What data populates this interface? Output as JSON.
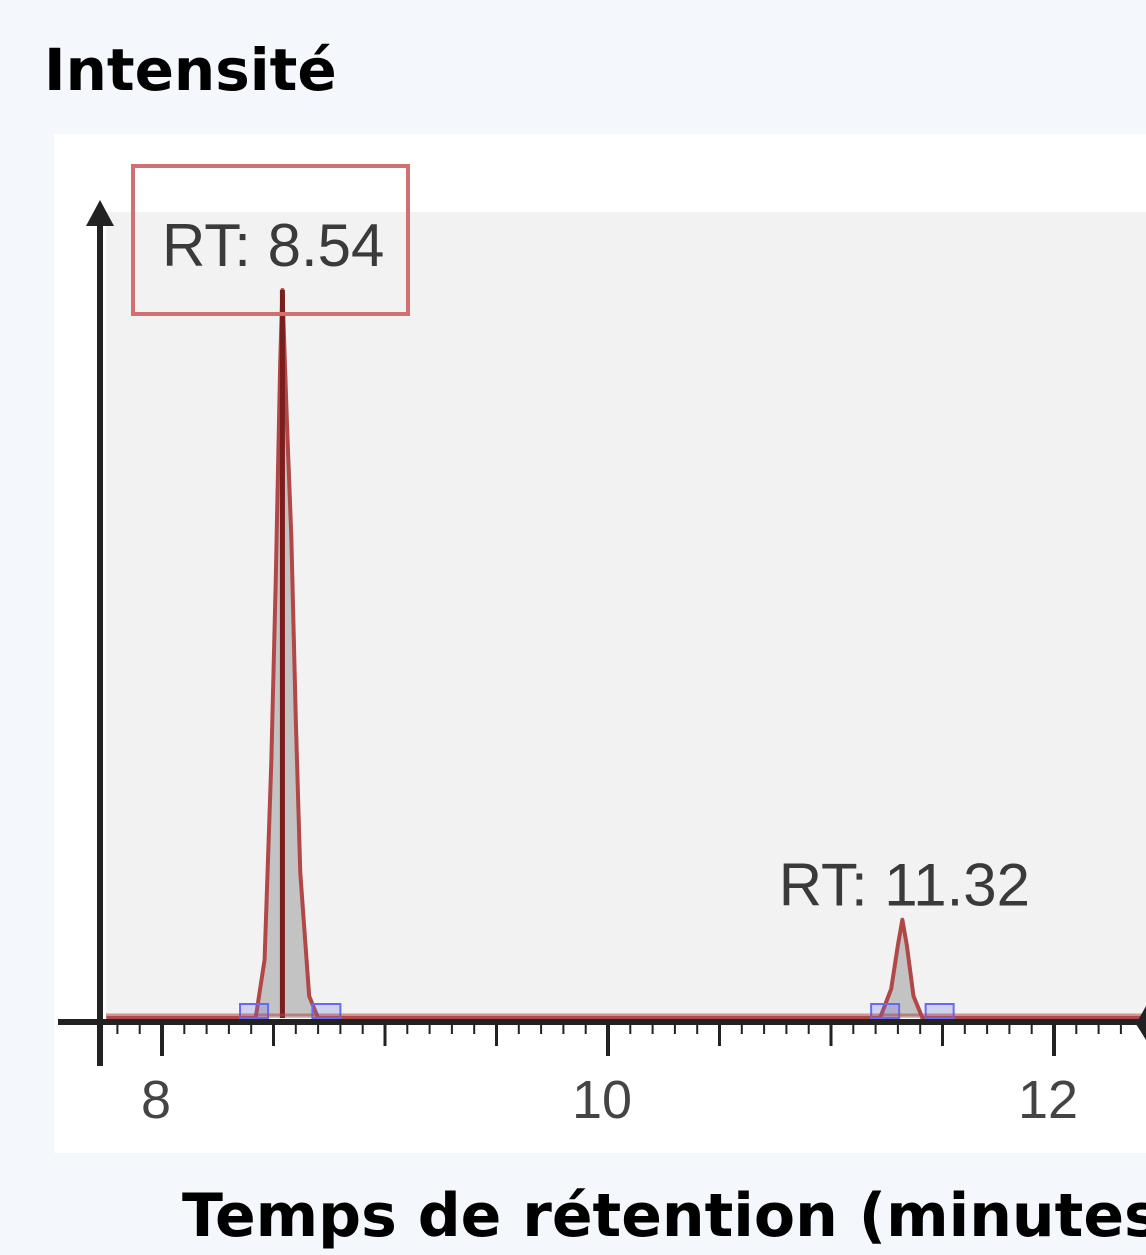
{
  "chart_data": {
    "type": "line",
    "title": "",
    "ylabel": "Intensité",
    "xlabel": "Temps de rétention (minutes)",
    "xlim": [
      7.75,
      12.45
    ],
    "ylim": [
      0,
      1.0
    ],
    "x_ticks": [
      8,
      10,
      12
    ],
    "grid": false,
    "series": [
      {
        "values": [
          {
            "x": 7.75,
            "y": 0.0
          },
          {
            "x": 8.42,
            "y": 0.0
          },
          {
            "x": 8.46,
            "y": 0.08
          },
          {
            "x": 8.49,
            "y": 0.35
          },
          {
            "x": 8.51,
            "y": 0.6
          },
          {
            "x": 8.53,
            "y": 0.9
          },
          {
            "x": 8.54,
            "y": 1.0
          },
          {
            "x": 8.56,
            "y": 0.82
          },
          {
            "x": 8.58,
            "y": 0.66
          },
          {
            "x": 8.6,
            "y": 0.41
          },
          {
            "x": 8.62,
            "y": 0.2
          },
          {
            "x": 8.66,
            "y": 0.03
          },
          {
            "x": 8.7,
            "y": 0.0
          },
          {
            "x": 11.22,
            "y": 0.0
          },
          {
            "x": 11.27,
            "y": 0.04
          },
          {
            "x": 11.3,
            "y": 0.1
          },
          {
            "x": 11.32,
            "y": 0.135
          },
          {
            "x": 11.34,
            "y": 0.1
          },
          {
            "x": 11.37,
            "y": 0.03
          },
          {
            "x": 11.41,
            "y": 0.0
          },
          {
            "x": 12.45,
            "y": 0.0
          }
        ]
      }
    ],
    "peaks": [
      {
        "label": "RT: 8.54",
        "x": 8.54,
        "y": 1.0,
        "boxed": true
      },
      {
        "label": "RT: 11.32",
        "x": 11.32,
        "y": 0.135,
        "boxed": false
      }
    ],
    "integration_windows": [
      [
        8.35,
        8.8
      ],
      [
        11.18,
        11.55
      ]
    ],
    "colors": {
      "trace": "#b04848",
      "trace_dark": "#7a1d1d",
      "fill": "#c3c3c3",
      "plot_bg": "#f2f2f2",
      "axis": "#222222",
      "label_box": "#d07070",
      "integration_marker": "#6a6af0"
    }
  }
}
